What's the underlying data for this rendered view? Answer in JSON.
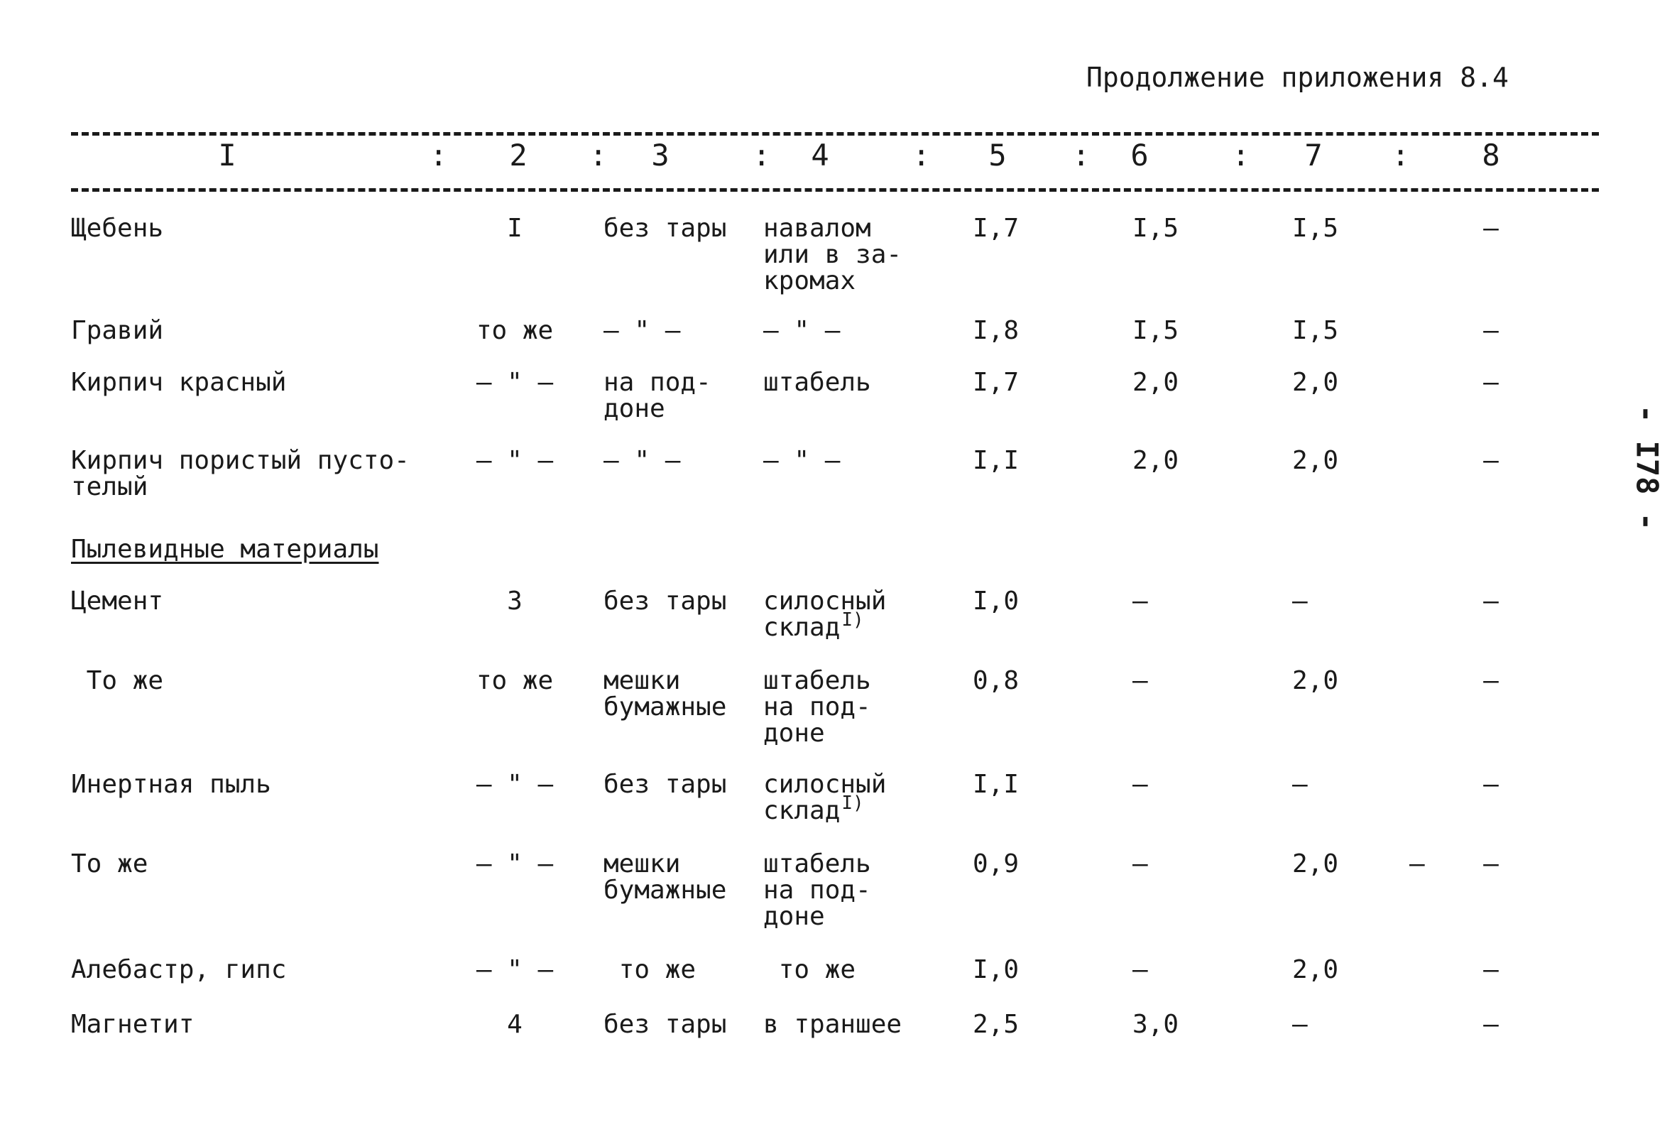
{
  "continuation": "Продолжение приложения 8.4",
  "headers": [
    "I",
    "2",
    "3",
    "4",
    "5",
    "6",
    "7",
    "8"
  ],
  "separator": ":",
  "section_title": "Пылевидные материалы",
  "page_number": "- I78 -",
  "rows": [
    {
      "c1": "Щебень",
      "c2": "I",
      "c3": "без тары",
      "c4": "навалом\nили в за-\nкромах",
      "c5": "I,7",
      "c6": "I,5",
      "c7": "I,5",
      "c8": "–"
    },
    {
      "c1": "Гравий",
      "c2": "то же",
      "c3": "– \" –",
      "c4": "– \" –",
      "c5": "I,8",
      "c6": "I,5",
      "c7": "I,5",
      "c8": "–"
    },
    {
      "c1": "Кирпич красный",
      "c2": "– \" –",
      "c3": "на под-\nдоне",
      "c4": "штабель",
      "c5": "I,7",
      "c6": "2,0",
      "c7": "2,0",
      "c8": "–"
    },
    {
      "c1": "Кирпич пористый пусто-\nтелый",
      "c2": "– \" –",
      "c3": "– \" –",
      "c4": "– \" –",
      "c5": "I,I",
      "c6": "2,0",
      "c7": "2,0",
      "c8": "–"
    },
    {
      "c1": "Цемент",
      "c2": "3",
      "c3": "без тары",
      "c4": "силосный\nсклад",
      "c4sup": "I)",
      "c5": "I,0",
      "c6": "–",
      "c7": "–",
      "c8": "–"
    },
    {
      "c1": " То же",
      "c2": "то же",
      "c3": "мешки\nбумажные",
      "c4": "штабель\nна под-\nдоне",
      "c5": "0,8",
      "c6": "–",
      "c7": "2,0",
      "c8": "–"
    },
    {
      "c1": "Инертная пыль",
      "c2": "– \" –",
      "c3": "без тары",
      "c4": "силосный\nсклад",
      "c4sup": "I)",
      "c5": "I,I",
      "c6": "–",
      "c7": "–",
      "c8": "–"
    },
    {
      "c1": "То же",
      "c2": "– \" –",
      "c3": "мешки\nбумажные",
      "c4": "штабель\nна под-\nдоне",
      "c5": "0,9",
      "c6": "–",
      "c7": "2,0",
      "c7b": "–",
      "c8": "–"
    },
    {
      "c1": "Алебастр, гипс",
      "c2": "– \" –",
      "c3": " то же",
      "c4": " то же",
      "c5": "I,0",
      "c6": "–",
      "c7": "2,0",
      "c8": "–"
    },
    {
      "c1": "Магнетит",
      "c2": "4",
      "c3": "без тары",
      "c4": "в траншее",
      "c5": "2,5",
      "c6": "3,0",
      "c7": "–",
      "c8": "–"
    }
  ]
}
